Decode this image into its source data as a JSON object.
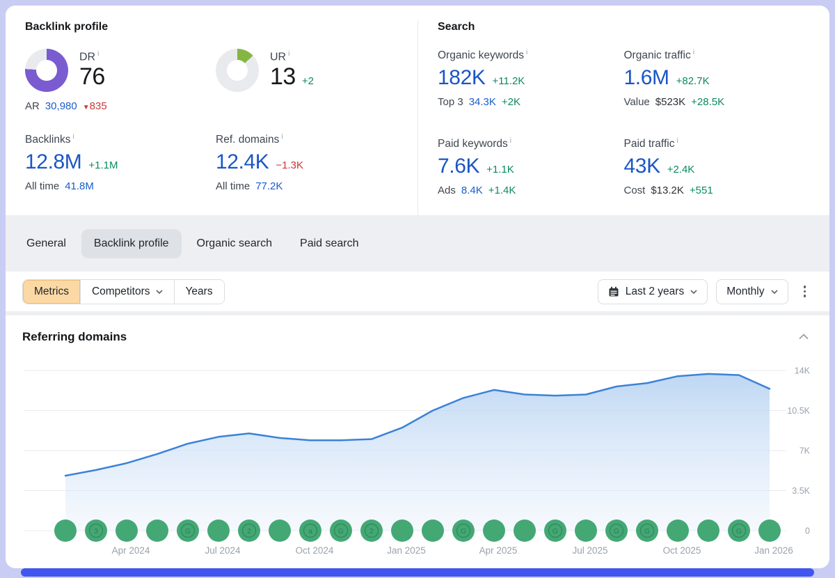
{
  "backlink_profile": {
    "title": "Backlink profile",
    "dr": {
      "label": "DR",
      "value": "76",
      "donut_pct": 76,
      "donut_color": "#7a5cd0",
      "ar_label": "AR",
      "ar_value": "30,980",
      "ar_delta": "835"
    },
    "ur": {
      "label": "UR",
      "value": "13",
      "delta": "+2",
      "donut_pct": 13,
      "donut_color": "#85b643"
    },
    "backlinks": {
      "label": "Backlinks",
      "value": "12.8M",
      "delta": "+1.1M",
      "sub_label": "All time",
      "sub_value": "41.8M"
    },
    "ref_domains": {
      "label": "Ref. domains",
      "value": "12.4K",
      "delta": "−1.3K",
      "sub_label": "All time",
      "sub_value": "77.2K"
    }
  },
  "search": {
    "title": "Search",
    "organic_keywords": {
      "label": "Organic keywords",
      "value": "182K",
      "delta": "+11.2K",
      "sub_label": "Top 3",
      "sub_value": "34.3K",
      "sub_delta": "+2K"
    },
    "organic_traffic": {
      "label": "Organic traffic",
      "value": "1.6M",
      "delta": "+82.7K",
      "sub_label": "Value",
      "sub_value": "$523K",
      "sub_delta": "+28.5K"
    },
    "paid_keywords": {
      "label": "Paid keywords",
      "value": "7.6K",
      "delta": "+1.1K",
      "sub_label": "Ads",
      "sub_value": "8.4K",
      "sub_delta": "+1.4K"
    },
    "paid_traffic": {
      "label": "Paid traffic",
      "value": "43K",
      "delta": "+2.4K",
      "sub_label": "Cost",
      "sub_value": "$13.2K",
      "sub_delta": "+551"
    }
  },
  "tabs": {
    "items": [
      "General",
      "Backlink profile",
      "Organic search",
      "Paid search"
    ],
    "active": "Backlink profile"
  },
  "toolbar": {
    "metrics": "Metrics",
    "competitors": "Competitors",
    "years": "Years",
    "range": "Last 2 years",
    "granularity": "Monthly"
  },
  "chart_section": {
    "title": "Referring domains"
  },
  "colors": {
    "value_blue": "#1a56c4",
    "positive_green": "#0b8a5e",
    "negative_red": "#d03333",
    "dr_donut_purple": "#7a5cd0",
    "ur_donut_green": "#85b643",
    "chart_line_blue": "#3b82d8",
    "marker_green": "#44a875",
    "metrics_button_bg": "#fcd9a4"
  },
  "chart_data": {
    "type": "area",
    "title": "Referring domains",
    "x": [
      "Feb 2024",
      "Mar 2024",
      "Apr 2024",
      "May 2024",
      "Jun 2024",
      "Jul 2024",
      "Aug 2024",
      "Sep 2024",
      "Oct 2024",
      "Nov 2024",
      "Dec 2024",
      "Jan 2025",
      "Feb 2025",
      "Mar 2025",
      "Apr 2025",
      "May 2025",
      "Jun 2025",
      "Jul 2025",
      "Aug 2025",
      "Sep 2025",
      "Oct 2025",
      "Nov 2025",
      "Dec 2025",
      "Jan 2026"
    ],
    "values": [
      4800,
      5300,
      5900,
      6700,
      7600,
      8200,
      8500,
      8100,
      7900,
      7900,
      8000,
      9000,
      10500,
      11600,
      12300,
      11900,
      11800,
      11900,
      12600,
      12900,
      13500,
      13700,
      13600,
      12400
    ],
    "ylabel": "",
    "xlabel": "",
    "ylim": [
      0,
      14000
    ],
    "y_tick_values": [
      14000,
      10500,
      7000,
      3500,
      0
    ],
    "y_tick_labels": [
      "14K",
      "10.5K",
      "7K",
      "3.5K",
      "0"
    ],
    "x_tick_indices": [
      2,
      5,
      8,
      11,
      14,
      17,
      20,
      23
    ],
    "x_tick_labels": [
      "Apr 2024",
      "Jul 2024",
      "Oct 2024",
      "Jan 2025",
      "Apr 2025",
      "Jul 2025",
      "Oct 2025",
      "Jan 2026"
    ],
    "grid": "horizontal",
    "legend": "none",
    "line_color": "#3b82d8",
    "marker_color": "#44a875",
    "marker_glyphs": [
      "",
      "3",
      "",
      "",
      "G",
      "",
      "2",
      "",
      "a",
      "G",
      "2",
      "",
      "",
      "G",
      "",
      "",
      "G",
      "",
      "G",
      "G",
      "",
      "",
      "G",
      ""
    ]
  }
}
